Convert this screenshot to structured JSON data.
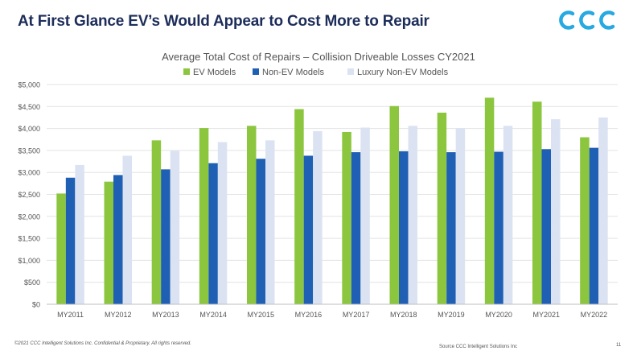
{
  "slide": {
    "title": "At First Glance EV’s Would Appear to Cost More to Repair",
    "logo_text": "CCC",
    "footer_copyright": "©2021 CCC Intelligent Solutions Inc. Confidential & Proprietary. All rights reserved.",
    "footer_source": "Source CCC Intelligent Solutions Inc",
    "page_number": "11"
  },
  "colors": {
    "title": "#1d2d5a",
    "logo": "#27a9e1",
    "ev": "#8cc63f",
    "non_ev": "#1f5fb4",
    "luxury": "#dbe3f2",
    "axis_text": "#555555",
    "grid": "#e3e3e3"
  },
  "chart_data": {
    "type": "bar",
    "title": "Average Total Cost of Repairs – Collision Driveable Losses CY2021",
    "xlabel": "",
    "ylabel": "",
    "ylim": [
      0,
      5000
    ],
    "yticks": [
      0,
      500,
      1000,
      1500,
      2000,
      2500,
      3000,
      3500,
      4000,
      4500,
      5000
    ],
    "ytick_labels": [
      "$0",
      "$500",
      "$1,000",
      "$1,500",
      "$2,000",
      "$2,500",
      "$3,000",
      "$3,500",
      "$4,000",
      "$4,500",
      "$5,000"
    ],
    "grid": true,
    "legend_position": "top-center",
    "categories": [
      "MY2011",
      "MY2012",
      "MY2013",
      "MY2014",
      "MY2015",
      "MY2016",
      "MY2017",
      "MY2018",
      "MY2019",
      "MY2020",
      "MY2021",
      "MY2022"
    ],
    "series": [
      {
        "name": "EV Models",
        "color": "#8cc63f",
        "values": [
          2520,
          2790,
          3730,
          4010,
          4060,
          4440,
          3920,
          4510,
          4360,
          4700,
          4610,
          3800
        ]
      },
      {
        "name": "Non-EV Models",
        "color": "#1f5fb4",
        "values": [
          2880,
          2940,
          3070,
          3210,
          3310,
          3380,
          3460,
          3480,
          3460,
          3470,
          3530,
          3560
        ]
      },
      {
        "name": "Luxury Non-EV Models",
        "color": "#dbe3f2",
        "values": [
          3170,
          3380,
          3490,
          3690,
          3730,
          3940,
          4020,
          4060,
          4010,
          4060,
          4210,
          4250
        ]
      }
    ]
  }
}
